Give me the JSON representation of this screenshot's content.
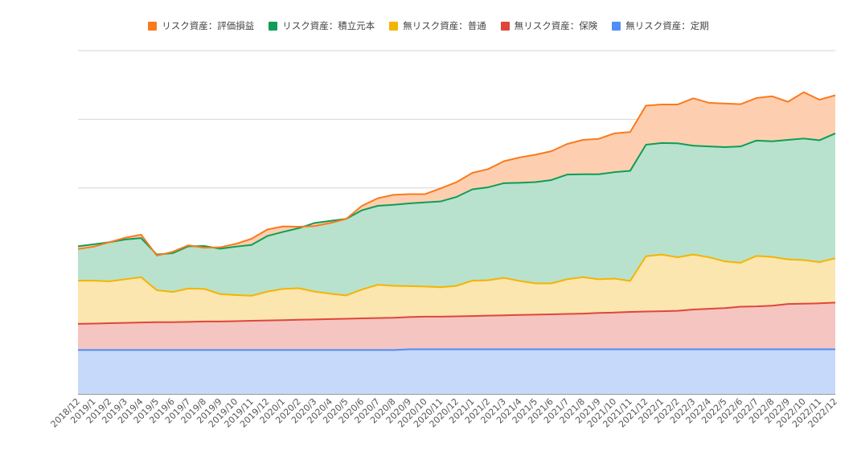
{
  "chart_data": {
    "type": "area",
    "stacked": true,
    "title": "",
    "xlabel": "",
    "ylabel": "",
    "grid": true,
    "legend_position": "top",
    "y_axis_labels_visible": false,
    "ylim": [
      0,
      100
    ],
    "categories": [
      "2018/12",
      "2019/1",
      "2019/2",
      "2019/3",
      "2019/4",
      "2019/5",
      "2019/6",
      "2019/7",
      "2019/8",
      "2019/9",
      "2019/10",
      "2019/11",
      "2019/12",
      "2020/1",
      "2020/2",
      "2020/3",
      "2020/4",
      "2020/5",
      "2020/6",
      "2020/7",
      "2020/8",
      "2020/9",
      "2020/10",
      "2020/11",
      "2020/12",
      "2021/1",
      "2021/2",
      "2021/3",
      "2021/4",
      "2021/5",
      "2021/6",
      "2021/7",
      "2021/8",
      "2021/9",
      "2021/10",
      "2021/11",
      "2021/12",
      "2022/1",
      "2022/2",
      "2022/3",
      "2022/4",
      "2022/5",
      "2022/6",
      "2022/7",
      "2022/8",
      "2022/9",
      "2022/10",
      "2022/11",
      "2022/12"
    ],
    "series": [
      {
        "name": "無リスク資産：定期",
        "color": "#4f8ef5",
        "fill": "#c6d9fb",
        "values": [
          12.8,
          12.8,
          12.8,
          12.8,
          12.8,
          12.8,
          12.8,
          12.8,
          12.8,
          12.8,
          12.8,
          12.8,
          12.8,
          12.8,
          12.8,
          12.8,
          12.8,
          12.8,
          12.8,
          12.8,
          12.8,
          13.0,
          13.0,
          13.0,
          13.0,
          13.0,
          13.0,
          13.0,
          13.0,
          13.0,
          13.0,
          13.0,
          13.0,
          13.0,
          13.0,
          13.0,
          13.0,
          13.0,
          13.0,
          13.0,
          13.0,
          13.0,
          13.0,
          13.0,
          13.0,
          13.0,
          13.0,
          13.0,
          13.0
        ]
      },
      {
        "name": "無リスク資産：保険",
        "color": "#e0463b",
        "fill": "#f4c5c1",
        "values": [
          7.6,
          7.7,
          7.8,
          7.9,
          8.0,
          8.1,
          8.1,
          8.2,
          8.3,
          8.3,
          8.4,
          8.5,
          8.6,
          8.7,
          8.8,
          8.9,
          9.0,
          9.1,
          9.2,
          9.3,
          9.4,
          9.4,
          9.5,
          9.5,
          9.6,
          9.7,
          9.8,
          9.9,
          10.0,
          10.1,
          10.2,
          10.3,
          10.4,
          10.6,
          10.7,
          10.9,
          11.0,
          11.1,
          11.2,
          11.6,
          11.8,
          12.0,
          12.4,
          12.5,
          12.7,
          13.2,
          13.3,
          13.4,
          13.6
        ]
      },
      {
        "name": "無リスク資産：普通",
        "color": "#f4b400",
        "fill": "#fbe6b0",
        "values": [
          12.6,
          12.5,
          12.2,
          12.7,
          13.2,
          9.3,
          8.8,
          9.7,
          9.5,
          8.0,
          7.6,
          7.3,
          8.4,
          9.1,
          9.2,
          8.1,
          7.4,
          6.8,
          8.4,
          9.7,
          9.3,
          9.0,
          8.8,
          8.6,
          8.9,
          10.3,
          10.3,
          10.9,
          9.9,
          9.1,
          9.0,
          10.1,
          10.6,
          9.8,
          9.9,
          9.0,
          16.1,
          16.5,
          15.6,
          16.0,
          15.0,
          13.6,
          12.8,
          14.7,
          14.2,
          13.0,
          12.7,
          12.0,
          12.9
        ]
      },
      {
        "name": "リスク資産：積立元本",
        "color": "#0f9d58",
        "fill": "#b8e2cd",
        "values": [
          10.0,
          10.6,
          11.4,
          11.6,
          11.4,
          10.4,
          11.3,
          12.3,
          12.5,
          13.2,
          14.1,
          14.8,
          16.2,
          16.6,
          17.5,
          20.0,
          21.2,
          22.3,
          23.1,
          23.0,
          23.6,
          24.1,
          24.5,
          25.0,
          25.9,
          26.6,
          27.1,
          27.6,
          28.6,
          29.5,
          30.1,
          30.5,
          30.0,
          30.6,
          31.0,
          32.1,
          32.5,
          32.5,
          33.2,
          31.7,
          32.3,
          33.3,
          33.9,
          33.6,
          33.7,
          34.8,
          35.4,
          35.5,
          36.4
        ]
      },
      {
        "name": "リスク資産：評価損益",
        "color": "#fa7a1e",
        "fill": "#fdcfb0",
        "values": [
          -0.8,
          -0.7,
          0,
          0.5,
          1.0,
          -0.3,
          0.4,
          0.3,
          -0.5,
          0.4,
          0.8,
          1.8,
          1.9,
          1.6,
          0.4,
          -0.9,
          -0.6,
          0,
          1.3,
          2.2,
          2.9,
          2.7,
          2.4,
          3.8,
          4.3,
          4.8,
          5.3,
          6.4,
          7.4,
          8.0,
          8.4,
          8.9,
          10.0,
          10.3,
          11.3,
          11.3,
          11.4,
          11.2,
          11.3,
          13.8,
          12.7,
          12.7,
          12.3,
          12.4,
          13.1,
          11.1,
          13.5,
          11.8,
          11.1
        ]
      }
    ]
  }
}
